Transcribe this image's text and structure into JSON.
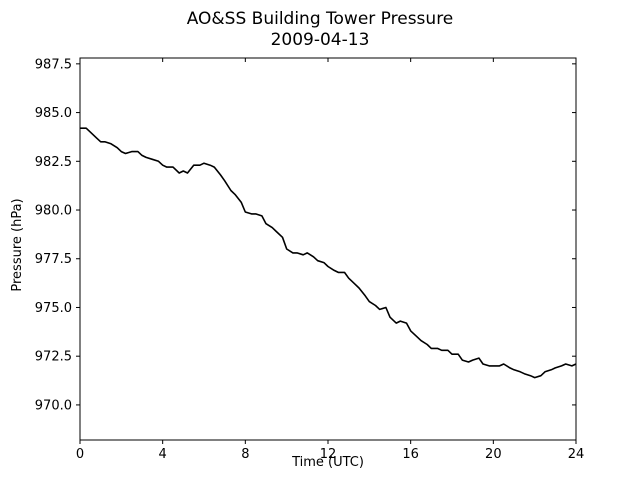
{
  "chart_data": {
    "type": "line",
    "title": "AO&SS Building Tower Pressure",
    "subtitle": "2009-04-13",
    "xlabel": "Time (UTC)",
    "ylabel": "Pressure (hPa)",
    "xlim": [
      0,
      24
    ],
    "ylim": [
      968.2,
      987.8
    ],
    "xticks": [
      0,
      4,
      8,
      12,
      16,
      20,
      24
    ],
    "xtick_labels": [
      "0",
      "4",
      "8",
      "12",
      "16",
      "20",
      "24"
    ],
    "yticks": [
      970.0,
      972.5,
      975.0,
      977.5,
      980.0,
      982.5,
      985.0,
      987.5
    ],
    "ytick_labels": [
      "970.0",
      "972.5",
      "975.0",
      "977.5",
      "980.0",
      "982.5",
      "985.0",
      "987.5"
    ],
    "grid": false,
    "legend": "none",
    "series": [
      {
        "color": "#000000",
        "x": [
          0.0,
          0.3,
          0.5,
          0.8,
          1.0,
          1.2,
          1.5,
          1.8,
          2.0,
          2.2,
          2.5,
          2.8,
          3.0,
          3.2,
          3.5,
          3.8,
          4.0,
          4.2,
          4.5,
          4.8,
          5.0,
          5.2,
          5.5,
          5.8,
          6.0,
          6.3,
          6.5,
          6.8,
          7.0,
          7.3,
          7.5,
          7.8,
          8.0,
          8.3,
          8.5,
          8.8,
          9.0,
          9.3,
          9.5,
          9.8,
          10.0,
          10.3,
          10.5,
          10.8,
          11.0,
          11.3,
          11.5,
          11.8,
          12.0,
          12.3,
          12.5,
          12.8,
          13.0,
          13.3,
          13.5,
          13.8,
          14.0,
          14.3,
          14.5,
          14.8,
          15.0,
          15.3,
          15.5,
          15.8,
          16.0,
          16.3,
          16.5,
          16.8,
          17.0,
          17.3,
          17.5,
          17.8,
          18.0,
          18.3,
          18.5,
          18.8,
          19.0,
          19.3,
          19.5,
          19.8,
          20.0,
          20.3,
          20.5,
          20.8,
          21.0,
          21.3,
          21.5,
          21.8,
          22.0,
          22.3,
          22.5,
          22.8,
          23.0,
          23.3,
          23.5,
          23.8,
          24.0
        ],
        "y": [
          984.2,
          984.2,
          984.0,
          983.7,
          983.5,
          983.5,
          983.4,
          983.2,
          983.0,
          982.9,
          983.0,
          983.0,
          982.8,
          982.7,
          982.6,
          982.5,
          982.3,
          982.2,
          982.2,
          981.9,
          982.0,
          981.9,
          982.3,
          982.3,
          982.4,
          982.3,
          982.2,
          981.8,
          981.5,
          981.0,
          980.8,
          980.4,
          979.9,
          979.8,
          979.8,
          979.7,
          979.3,
          979.1,
          978.9,
          978.6,
          978.0,
          977.8,
          977.8,
          977.7,
          977.8,
          977.6,
          977.4,
          977.3,
          977.1,
          976.9,
          976.8,
          976.8,
          976.5,
          976.2,
          976.0,
          975.6,
          975.3,
          975.1,
          974.9,
          975.0,
          974.5,
          974.2,
          974.3,
          974.2,
          973.8,
          973.5,
          973.3,
          973.1,
          972.9,
          972.9,
          972.8,
          972.8,
          972.6,
          972.6,
          972.3,
          972.2,
          972.3,
          972.4,
          972.1,
          972.0,
          972.0,
          972.0,
          972.1,
          971.9,
          971.8,
          971.7,
          971.6,
          971.5,
          971.4,
          971.5,
          971.7,
          971.8,
          971.9,
          972.0,
          972.1,
          972.0,
          972.1
        ]
      }
    ]
  }
}
